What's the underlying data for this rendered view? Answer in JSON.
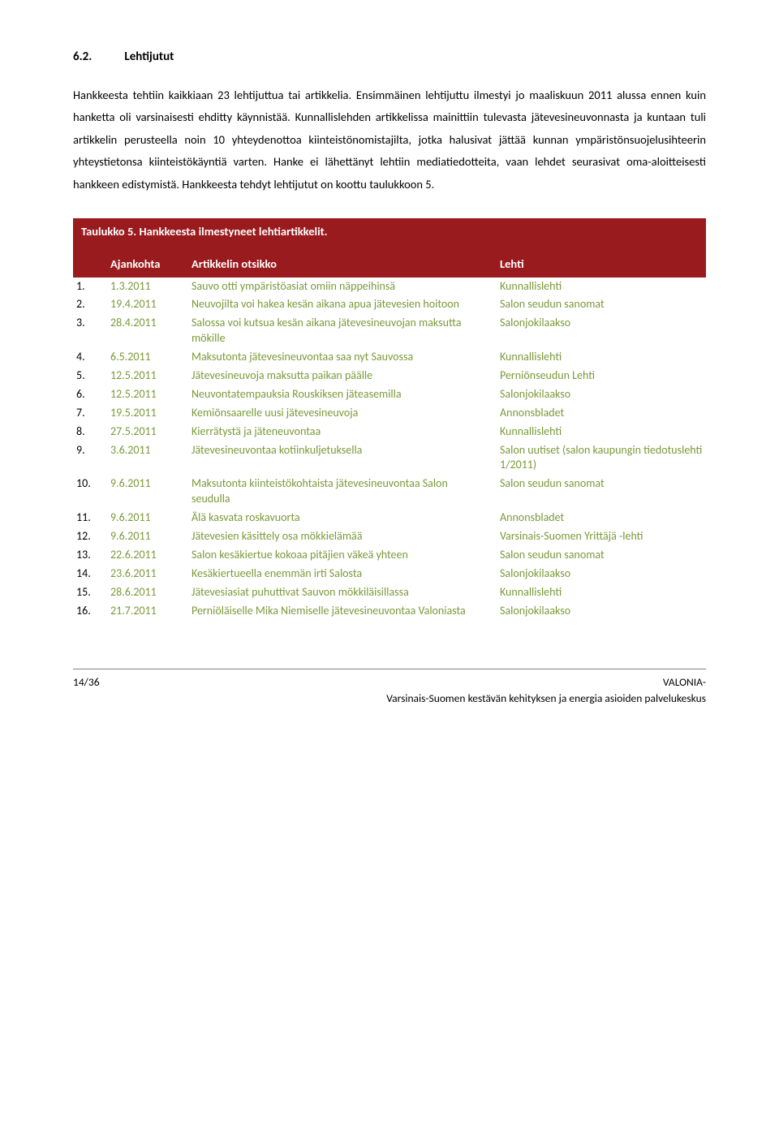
{
  "section": {
    "number": "6.2.",
    "title": "Lehtijutut"
  },
  "paragraph": "Hankkeesta tehtiin kaikkiaan 23 lehtijuttua tai artikkelia. Ensimmäinen lehtijuttu ilmestyi jo maaliskuun 2011 alussa ennen kuin hanketta oli varsinaisesti ehditty käynnistää. Kunnallislehden artikkelissa mainittiin tulevasta jätevesineuvonnasta ja kuntaan tuli artikkelin perusteella noin 10 yhteydenottoa kiinteistönomistajilta, jotka halusivat jättää kunnan ympäristönsuojelusihteerin yhteystietonsa kiinteistökäyntiä varten. Hanke ei lähettänyt lehtiin mediatiedotteita, vaan lehdet seurasivat oma-aloitteisesti hankkeen edistymistä. Hankkeesta tehdyt lehtijutut on koottu taulukkoon 5.",
  "table": {
    "caption": "Taulukko 5. Hankkeesta ilmestyneet lehtiartikkelit.",
    "headers": {
      "col1": "",
      "col2": "Ajankohta",
      "col3": "Artikkelin otsikko",
      "col4": "Lehti"
    },
    "rows": [
      {
        "n": "1.",
        "date": "1.3.2011",
        "title": "Sauvo otti ympäristöasiat omiin näppeihinsä",
        "pub": "Kunnallislehti"
      },
      {
        "n": "2.",
        "date": "19.4.2011",
        "title": "Neuvojilta voi hakea kesän aikana apua jätevesien hoitoon",
        "pub": "Salon seudun sanomat"
      },
      {
        "n": "3.",
        "date": "28.4.2011",
        "title": "Salossa voi kutsua kesän aikana jätevesineuvojan maksutta mökille",
        "pub": "Salonjokilaakso"
      },
      {
        "n": "4.",
        "date": "6.5.2011",
        "title": "Maksutonta jätevesineuvontaa saa nyt Sauvossa",
        "pub": "Kunnallislehti"
      },
      {
        "n": "5.",
        "date": "12.5.2011",
        "title": "Jätevesineuvoja maksutta paikan päälle",
        "pub": "Perniönseudun Lehti"
      },
      {
        "n": "6.",
        "date": "12.5.2011",
        "title": "Neuvontatempauksia Rouskiksen jäteasemilla",
        "pub": "Salonjokilaakso"
      },
      {
        "n": "7.",
        "date": "19.5.2011",
        "title": "Kemiönsaarelle uusi jätevesineuvoja",
        "pub": "Annonsbladet"
      },
      {
        "n": "8.",
        "date": "27.5.2011",
        "title": "Kierrätystä ja jäteneuvontaa",
        "pub": "Kunnallislehti"
      },
      {
        "n": "9.",
        "date": "3.6.2011",
        "title": "Jätevesineuvontaa kotiinkuljetuksella",
        "pub": "Salon uutiset (salon kaupungin tiedotuslehti 1/2011)"
      },
      {
        "n": "10.",
        "date": "9.6.2011",
        "title": "Maksutonta kiinteistökohtaista jätevesineuvontaa Salon seudulla",
        "pub": "Salon seudun sanomat"
      },
      {
        "n": "11.",
        "date": "9.6.2011",
        "title": "Älä kasvata roskavuorta",
        "pub": "Annonsbladet"
      },
      {
        "n": "12.",
        "date": "9.6.2011",
        "title": "Jätevesien käsittely osa mökkielämää",
        "pub": "Varsinais-Suomen Yrittäjä -lehti"
      },
      {
        "n": "13.",
        "date": "22.6.2011",
        "title": "Salon kesäkiertue kokoaa pitäjien väkeä yhteen",
        "pub": "Salon seudun sanomat"
      },
      {
        "n": "14.",
        "date": "23.6.2011",
        "title": "Kesäkiertueella enemmän irti Salosta",
        "pub": "Salonjokilaakso"
      },
      {
        "n": "15.",
        "date": "28.6.2011",
        "title": "Jätevesiasiat puhuttivat Sauvon mökkiläisillassa",
        "pub": "Kunnallislehti"
      },
      {
        "n": "16.",
        "date": "21.7.2011",
        "title": "Perniöläiselle Mika Niemiselle jätevesineuvontaa Valoniasta",
        "pub": "Salonjokilaakso"
      }
    ]
  },
  "footer": {
    "page": "14/36",
    "org": "VALONIA-",
    "tagline": "Varsinais-Suomen kestävän kehityksen ja energia asioiden palvelukeskus"
  },
  "colors": {
    "header_bg": "#9a1b1e",
    "header_text": "#ffffff",
    "cell_text": "#7a9a3a",
    "body_text": "#000000"
  }
}
